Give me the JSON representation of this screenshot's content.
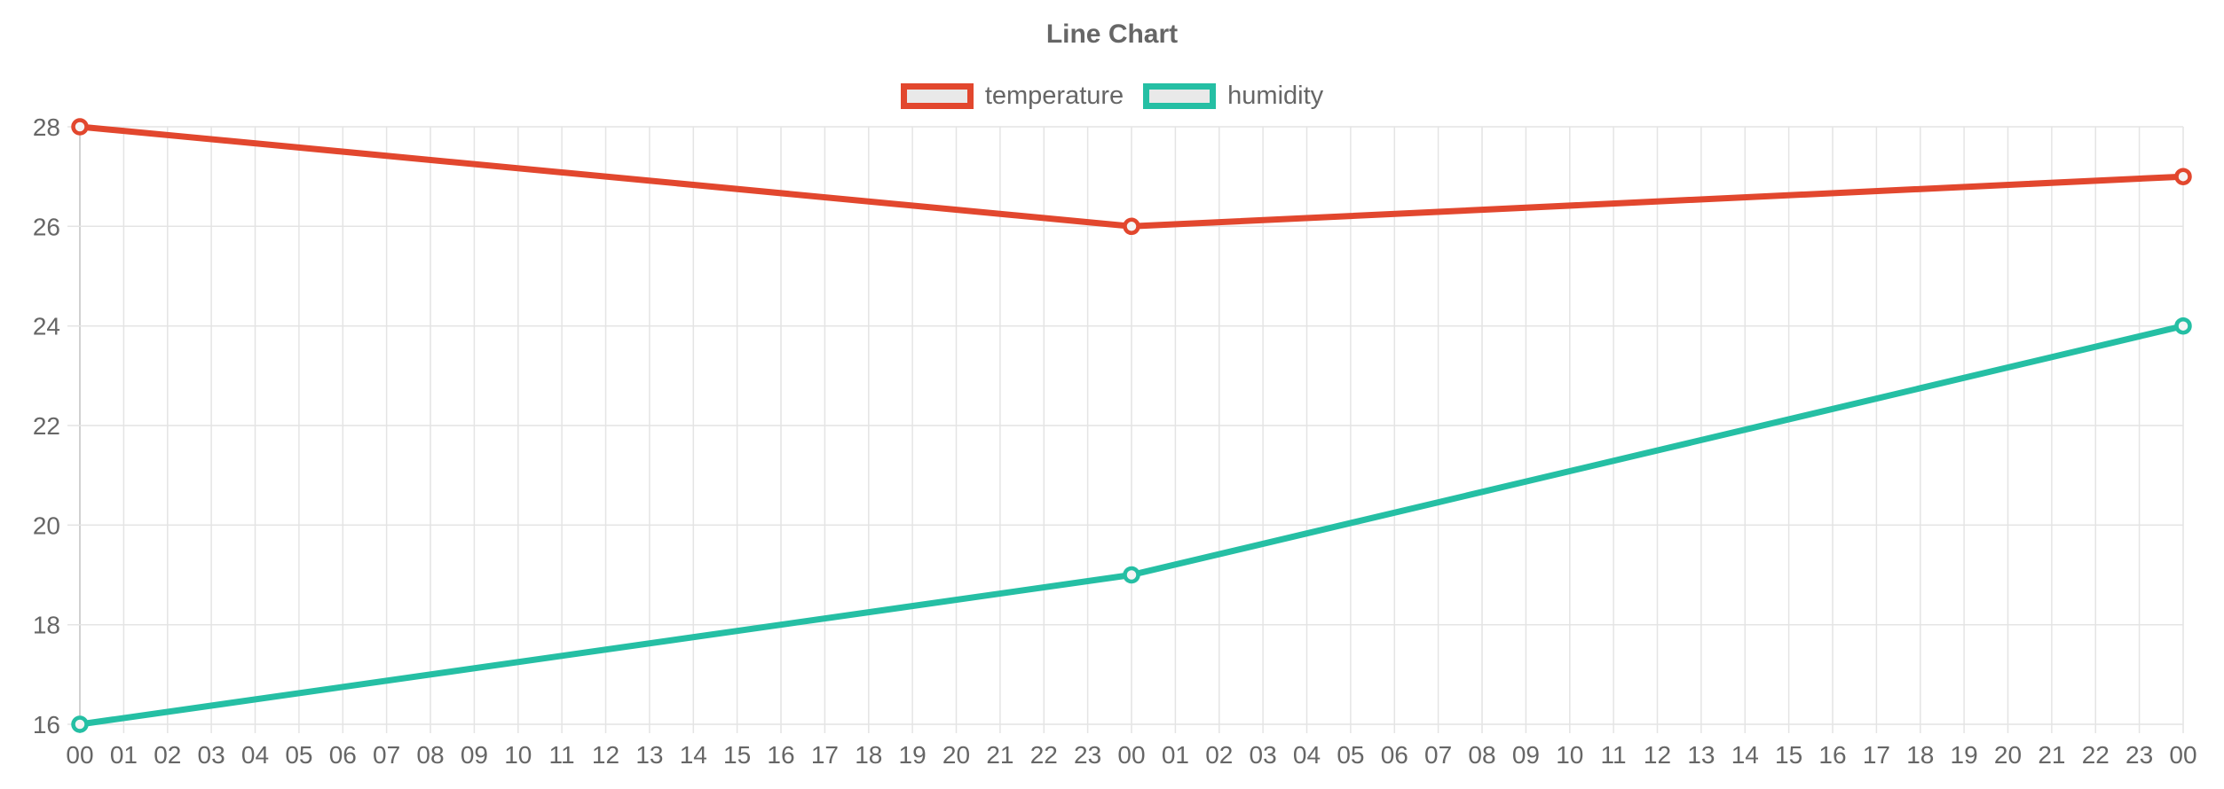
{
  "title": "Line Chart",
  "chart_data": {
    "type": "line",
    "title": "Line Chart",
    "legend_position": "top",
    "grid": true,
    "x_labels": [
      "00",
      "01",
      "02",
      "03",
      "04",
      "05",
      "06",
      "07",
      "08",
      "09",
      "10",
      "11",
      "12",
      "13",
      "14",
      "15",
      "16",
      "17",
      "18",
      "19",
      "20",
      "21",
      "22",
      "23",
      "00",
      "01",
      "02",
      "03",
      "04",
      "05",
      "06",
      "07",
      "08",
      "09",
      "10",
      "11",
      "12",
      "13",
      "14",
      "15",
      "16",
      "17",
      "18",
      "19",
      "20",
      "21",
      "22",
      "23",
      "00"
    ],
    "y_ticks": [
      16,
      18,
      20,
      22,
      24,
      26,
      28
    ],
    "ylim": [
      16,
      28
    ],
    "series": [
      {
        "name": "temperature",
        "color": "#e2472e",
        "points": [
          {
            "x_index": 0,
            "x_label": "00",
            "value": 28
          },
          {
            "x_index": 24,
            "x_label": "00",
            "value": 26
          },
          {
            "x_index": 48,
            "x_label": "00",
            "value": 27
          }
        ]
      },
      {
        "name": "humidity",
        "color": "#25bfa4",
        "points": [
          {
            "x_index": 0,
            "x_label": "00",
            "value": 16
          },
          {
            "x_index": 24,
            "x_label": "00",
            "value": 19
          },
          {
            "x_index": 48,
            "x_label": "00",
            "value": 24
          }
        ]
      }
    ],
    "colors": {
      "text": "#666666",
      "grid": "#e4e4e4",
      "axis_line": "#c2c2c2",
      "legend_box_fill": "#e9e9e9",
      "marker_fill": "#f5f5f5"
    }
  }
}
